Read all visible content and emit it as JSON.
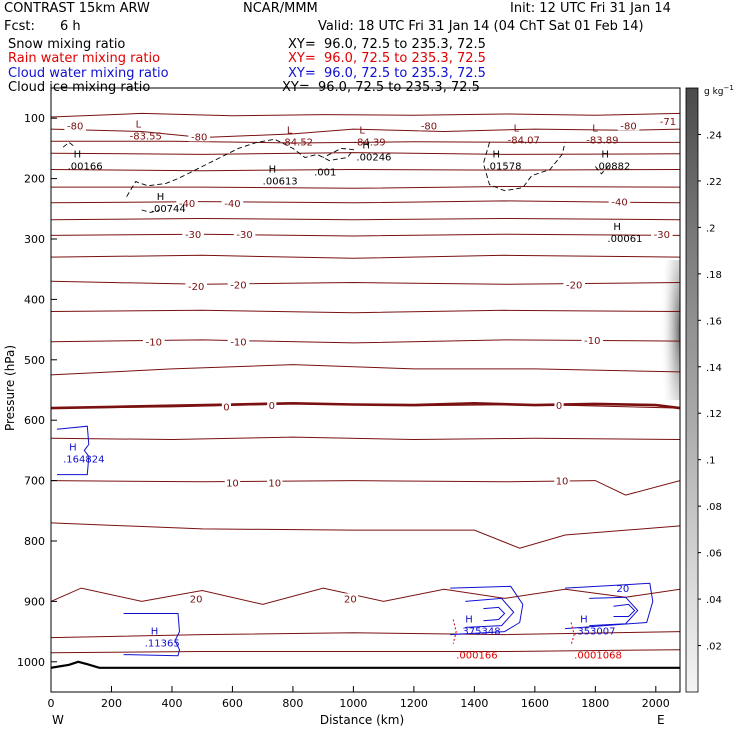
{
  "header": {
    "model": "CONTRAST 15km ARW",
    "org": "NCAR/MMM",
    "init": "Init: 12 UTC Fri 31 Jan 14",
    "fcst_label": "Fcst:",
    "fcst_value": "6 h",
    "valid": "Valid: 18 UTC Fri 31 Jan 14 (04 ChT Sat 01 Feb 14)"
  },
  "fields": [
    {
      "name": "Snow mixing ratio",
      "xy": "XY=  96.0, 72.5 to 235.3, 72.5",
      "color": "#000000"
    },
    {
      "name": "Rain water mixing ratio",
      "xy": "XY=  96.0, 72.5 to 235.3, 72.5",
      "color": "#e00000"
    },
    {
      "name": "Cloud water mixing ratio",
      "xy": "XY=  96.0, 72.5 to 235.3, 72.5",
      "color": "#1010d0"
    },
    {
      "name": "Cloud ice mixing ratio",
      "xy": "XY=  96.0, 72.5 to 235.3, 72.5",
      "color": "#000000"
    }
  ],
  "chart_data": {
    "type": "cross-section",
    "xlabel": "Distance (km)",
    "ylabel": "Pressure (hPa)",
    "xlim": [
      0,
      2080
    ],
    "ylim": [
      1050,
      50
    ],
    "xticks": [
      0,
      200,
      400,
      600,
      800,
      1000,
      1200,
      1400,
      1600,
      1800,
      2000
    ],
    "yticks": [
      100,
      200,
      300,
      400,
      500,
      600,
      700,
      800,
      900,
      1000
    ],
    "x_end_labels": {
      "left": "W",
      "right": "E"
    },
    "colorbar": {
      "unit": "g kg",
      "unit_exp": "−1",
      "ticks": [
        ".24",
        ".22",
        ".2",
        ".18",
        ".16",
        ".14",
        ".12",
        ".1",
        ".08",
        ".06",
        ".04",
        ".02"
      ],
      "values": [
        0.24,
        0.22,
        0.2,
        0.18,
        0.16,
        0.14,
        0.12,
        0.1,
        0.08,
        0.06,
        0.04,
        0.02
      ]
    },
    "temperature_color": "#7a1010",
    "temperature_labels": [
      {
        "text": "-80",
        "x": 80,
        "p": 112
      },
      {
        "text": "-80",
        "x": 490,
        "p": 130
      },
      {
        "text": "-80",
        "x": 1250,
        "p": 112
      },
      {
        "text": "-80",
        "x": 1910,
        "p": 112
      },
      {
        "text": "-71",
        "x": 2040,
        "p": 105
      },
      {
        "text": "-40",
        "x": 450,
        "p": 240
      },
      {
        "text": "-40",
        "x": 600,
        "p": 240
      },
      {
        "text": "-40",
        "x": 1880,
        "p": 238
      },
      {
        "text": "-30",
        "x": 470,
        "p": 292
      },
      {
        "text": "-30",
        "x": 640,
        "p": 292
      },
      {
        "text": "-30",
        "x": 2020,
        "p": 292
      },
      {
        "text": "-20",
        "x": 480,
        "p": 378
      },
      {
        "text": "-20",
        "x": 620,
        "p": 375
      },
      {
        "text": "-20",
        "x": 1730,
        "p": 375
      },
      {
        "text": "-10",
        "x": 340,
        "p": 470
      },
      {
        "text": "-10",
        "x": 620,
        "p": 470
      },
      {
        "text": "-10",
        "x": 1790,
        "p": 467
      },
      {
        "text": "0",
        "x": 580,
        "p": 577
      },
      {
        "text": "0",
        "x": 730,
        "p": 575
      },
      {
        "text": "0",
        "x": 1680,
        "p": 575
      },
      {
        "text": "10",
        "x": 600,
        "p": 703
      },
      {
        "text": "10",
        "x": 740,
        "p": 703
      },
      {
        "text": "10",
        "x": 1690,
        "p": 700
      },
      {
        "text": "20",
        "x": 480,
        "p": 895
      },
      {
        "text": "20",
        "x": 990,
        "p": 895
      }
    ],
    "extrema": [
      {
        "kind": "L",
        "text": "-83.55",
        "x": 260,
        "p": 125,
        "color": "#7a1010"
      },
      {
        "kind": "L",
        "text": "-84.52",
        "x": 760,
        "p": 135,
        "color": "#7a1010"
      },
      {
        "kind": "L",
        "text": "-84.39",
        "x": 1000,
        "p": 135,
        "color": "#7a1010"
      },
      {
        "kind": "L",
        "text": "-84.07",
        "x": 1510,
        "p": 132,
        "color": "#7a1010"
      },
      {
        "kind": "L",
        "text": "-83.89",
        "x": 1770,
        "p": 132,
        "color": "#7a1010"
      },
      {
        "kind": "H",
        "text": ".00166",
        "x": 55,
        "p": 175,
        "color": "#000000"
      },
      {
        "kind": "H",
        "text": ".00246",
        "x": 1010,
        "p": 160,
        "color": "#000000"
      },
      {
        "kind": "H",
        "text": ".01578",
        "x": 1440,
        "p": 175,
        "color": "#000000"
      },
      {
        "kind": "H",
        "text": ".00882",
        "x": 1800,
        "p": 175,
        "color": "#000000"
      },
      {
        "kind": "H",
        "text": ".00613",
        "x": 700,
        "p": 200,
        "color": "#000000"
      },
      {
        "kind": "H",
        "text": ".00744",
        "x": 330,
        "p": 245,
        "color": "#000000"
      },
      {
        "kind": "H",
        "text": ".00061",
        "x": 1840,
        "p": 295,
        "color": "#000000"
      },
      {
        "kind": "H",
        "text": ".164824",
        "x": 40,
        "p": 660,
        "color": "#1010d0"
      },
      {
        "kind": "H",
        "text": ".11365",
        "x": 310,
        "p": 965,
        "color": "#1010d0"
      },
      {
        "kind": "H",
        "text": ".375348",
        "x": 1350,
        "p": 945,
        "color": "#1010d0"
      },
      {
        "kind": "H",
        "text": ".353007",
        "x": 1730,
        "p": 945,
        "color": "#1010d0"
      },
      {
        "kind": "",
        "text": ".000166",
        "x": 1340,
        "p": 985,
        "color": "#e00000"
      },
      {
        "kind": "",
        "text": ".0001068",
        "x": 1730,
        "p": 985,
        "color": "#e00000"
      }
    ],
    "other_labels": [
      {
        "text": ".001",
        "x": 870,
        "p": 188,
        "color": "#000000"
      },
      {
        "text": "20",
        "x": 1870,
        "p": 878,
        "color": "#1010d0"
      }
    ],
    "temperature_contours": [
      {
        "level": -80,
        "x": [
          0,
          300,
          500,
          800,
          1000,
          1300,
          1600,
          1900,
          2080
        ],
        "p": [
          118,
          122,
          132,
          126,
          118,
          122,
          118,
          120,
          118
        ]
      },
      {
        "level": -80,
        "x": [
          0,
          300,
          600,
          900,
          1200,
          1500,
          1800,
          2080
        ],
        "p": [
          98,
          92,
          96,
          94,
          95,
          93,
          95,
          92
        ]
      },
      {
        "level": -80,
        "x": [
          0,
          400,
          800,
          1200,
          1600,
          2080
        ],
        "p": [
          138,
          138,
          141,
          139,
          140,
          140
        ]
      },
      {
        "level": -70,
        "x": [
          0,
          500,
          1000,
          1500,
          2080
        ],
        "p": [
          158,
          160,
          157,
          160,
          159
        ]
      },
      {
        "level": -60,
        "x": [
          0,
          500,
          1000,
          1500,
          2080
        ],
        "p": [
          185,
          187,
          185,
          186,
          185
        ]
      },
      {
        "level": -50,
        "x": [
          0,
          500,
          1000,
          1500,
          2080
        ],
        "p": [
          214,
          214,
          216,
          213,
          214
        ]
      },
      {
        "level": -40,
        "x": [
          0,
          500,
          1000,
          1500,
          2080
        ],
        "p": [
          240,
          238,
          240,
          237,
          240
        ]
      },
      {
        "level": -35,
        "x": [
          0,
          500,
          1000,
          1500,
          2080
        ],
        "p": [
          268,
          266,
          268,
          266,
          268
        ]
      },
      {
        "level": -30,
        "x": [
          0,
          500,
          1000,
          1500,
          2080
        ],
        "p": [
          294,
          292,
          295,
          292,
          294
        ]
      },
      {
        "level": -25,
        "x": [
          0,
          500,
          1000,
          1500,
          2080
        ],
        "p": [
          330,
          327,
          332,
          327,
          330
        ]
      },
      {
        "level": -20,
        "x": [
          0,
          500,
          1000,
          1500,
          2080
        ],
        "p": [
          370,
          375,
          372,
          375,
          372
        ]
      },
      {
        "level": -15,
        "x": [
          0,
          500,
          1000,
          1500,
          2080
        ],
        "p": [
          420,
          418,
          422,
          418,
          420
        ]
      },
      {
        "level": -10,
        "x": [
          0,
          500,
          1000,
          1500,
          2080
        ],
        "p": [
          470,
          467,
          472,
          467,
          469
        ]
      },
      {
        "level": -5,
        "x": [
          0,
          400,
          800,
          1200,
          1600,
          2080
        ],
        "p": [
          525,
          515,
          508,
          515,
          515,
          520
        ]
      },
      {
        "level": 0,
        "x": [
          0,
          400,
          800,
          1200,
          1600,
          2080
        ],
        "p": [
          580,
          578,
          573,
          576,
          574,
          580
        ]
      },
      {
        "level": 5,
        "x": [
          0,
          400,
          800,
          1200,
          1600,
          2080
        ],
        "p": [
          630,
          632,
          628,
          632,
          630,
          632
        ]
      },
      {
        "level": 10,
        "x": [
          0,
          500,
          1000,
          1500,
          1800,
          1900,
          2080
        ],
        "p": [
          700,
          702,
          700,
          702,
          700,
          724,
          700
        ]
      },
      {
        "level": 15,
        "x": [
          0,
          500,
          1000,
          1400,
          1550,
          1700,
          2080
        ],
        "p": [
          770,
          780,
          782,
          782,
          812,
          790,
          775
        ]
      },
      {
        "level": 20,
        "x": [
          0,
          100,
          300,
          500,
          700,
          900,
          1100,
          1300,
          1500,
          1700,
          1900,
          2080
        ],
        "p": [
          900,
          878,
          900,
          882,
          905,
          878,
          900,
          880,
          895,
          880,
          893,
          880
        ]
      },
      {
        "level": 25,
        "x": [
          0,
          500,
          1000,
          1500,
          2080
        ],
        "p": [
          960,
          955,
          952,
          955,
          950
        ]
      },
      {
        "level": 30,
        "x": [
          0,
          500,
          1000,
          1500,
          2080
        ],
        "p": [
          985,
          983,
          983,
          983,
          980
        ]
      }
    ],
    "freezing_level": {
      "x": [
        0,
        200,
        400,
        600,
        800,
        1000,
        1200,
        1400,
        1600,
        1800,
        2000,
        2080
      ],
      "p": [
        580,
        578,
        576,
        574,
        572,
        574,
        575,
        572,
        575,
        573,
        575,
        580
      ]
    },
    "surface": {
      "x": [
        0,
        60,
        90,
        120,
        160,
        300,
        1000,
        2080
      ],
      "p": [
        1010,
        1005,
        1000,
        1004,
        1010,
        1010,
        1010,
        1010
      ]
    },
    "cloud_ice_contours": [
      {
        "x": [
          250,
          280,
          320,
          380,
          420,
          460,
          500,
          560,
          620,
          680,
          740,
          800,
          840,
          880,
          920,
          980,
          1000,
          960,
          900
        ],
        "p": [
          230,
          205,
          212,
          208,
          200,
          190,
          180,
          165,
          150,
          140,
          135,
          150,
          165,
          160,
          170,
          165,
          152,
          150,
          165
        ]
      },
      {
        "x": [
          1450,
          1430,
          1450,
          1500,
          1560,
          1590,
          1650,
          1690,
          1700
        ],
        "p": [
          140,
          175,
          210,
          220,
          215,
          195,
          185,
          160,
          140
        ]
      },
      {
        "x": [
          1800,
          1820,
          1850
        ],
        "p": [
          180,
          192,
          175
        ]
      },
      {
        "x": [
          40,
          60,
          80
        ],
        "p": [
          148,
          140,
          148
        ]
      },
      {
        "x": [
          300,
          330,
          360
        ],
        "p": [
          252,
          256,
          252
        ]
      }
    ],
    "cloud_water_contours": [
      {
        "x": [
          20,
          120,
          125,
          110,
          125,
          120,
          20
        ],
        "p": [
          615,
          610,
          640,
          650,
          660,
          690,
          690
        ]
      },
      {
        "x": [
          240,
          420,
          425,
          410,
          425,
          420,
          240
        ],
        "p": [
          920,
          920,
          950,
          965,
          980,
          990,
          988
        ]
      },
      {
        "x": [
          1320,
          1520,
          1560,
          1550,
          1500,
          1320
        ],
        "p": [
          878,
          875,
          905,
          935,
          950,
          955
        ]
      },
      {
        "x": [
          1370,
          1490,
          1530,
          1490,
          1370
        ],
        "p": [
          900,
          895,
          918,
          940,
          943
        ]
      },
      {
        "x": [
          1430,
          1480,
          1500,
          1480,
          1430
        ],
        "p": [
          912,
          910,
          920,
          930,
          932
        ]
      },
      {
        "x": [
          1700,
          1980,
          1990,
          1970,
          1700
        ],
        "p": [
          878,
          870,
          900,
          935,
          945
        ]
      },
      {
        "x": [
          1780,
          1900,
          1940,
          1900,
          1780
        ],
        "p": [
          895,
          893,
          915,
          937,
          940
        ]
      },
      {
        "x": [
          1860,
          1910,
          1930,
          1910,
          1860
        ],
        "p": [
          908,
          905,
          915,
          925,
          925
        ]
      }
    ],
    "rain_water_contours": [
      {
        "x": [
          1330,
          1340,
          1330
        ],
        "p": [
          930,
          950,
          970
        ]
      },
      {
        "x": [
          1720,
          1730,
          1720
        ],
        "p": [
          935,
          955,
          972
        ]
      }
    ]
  }
}
